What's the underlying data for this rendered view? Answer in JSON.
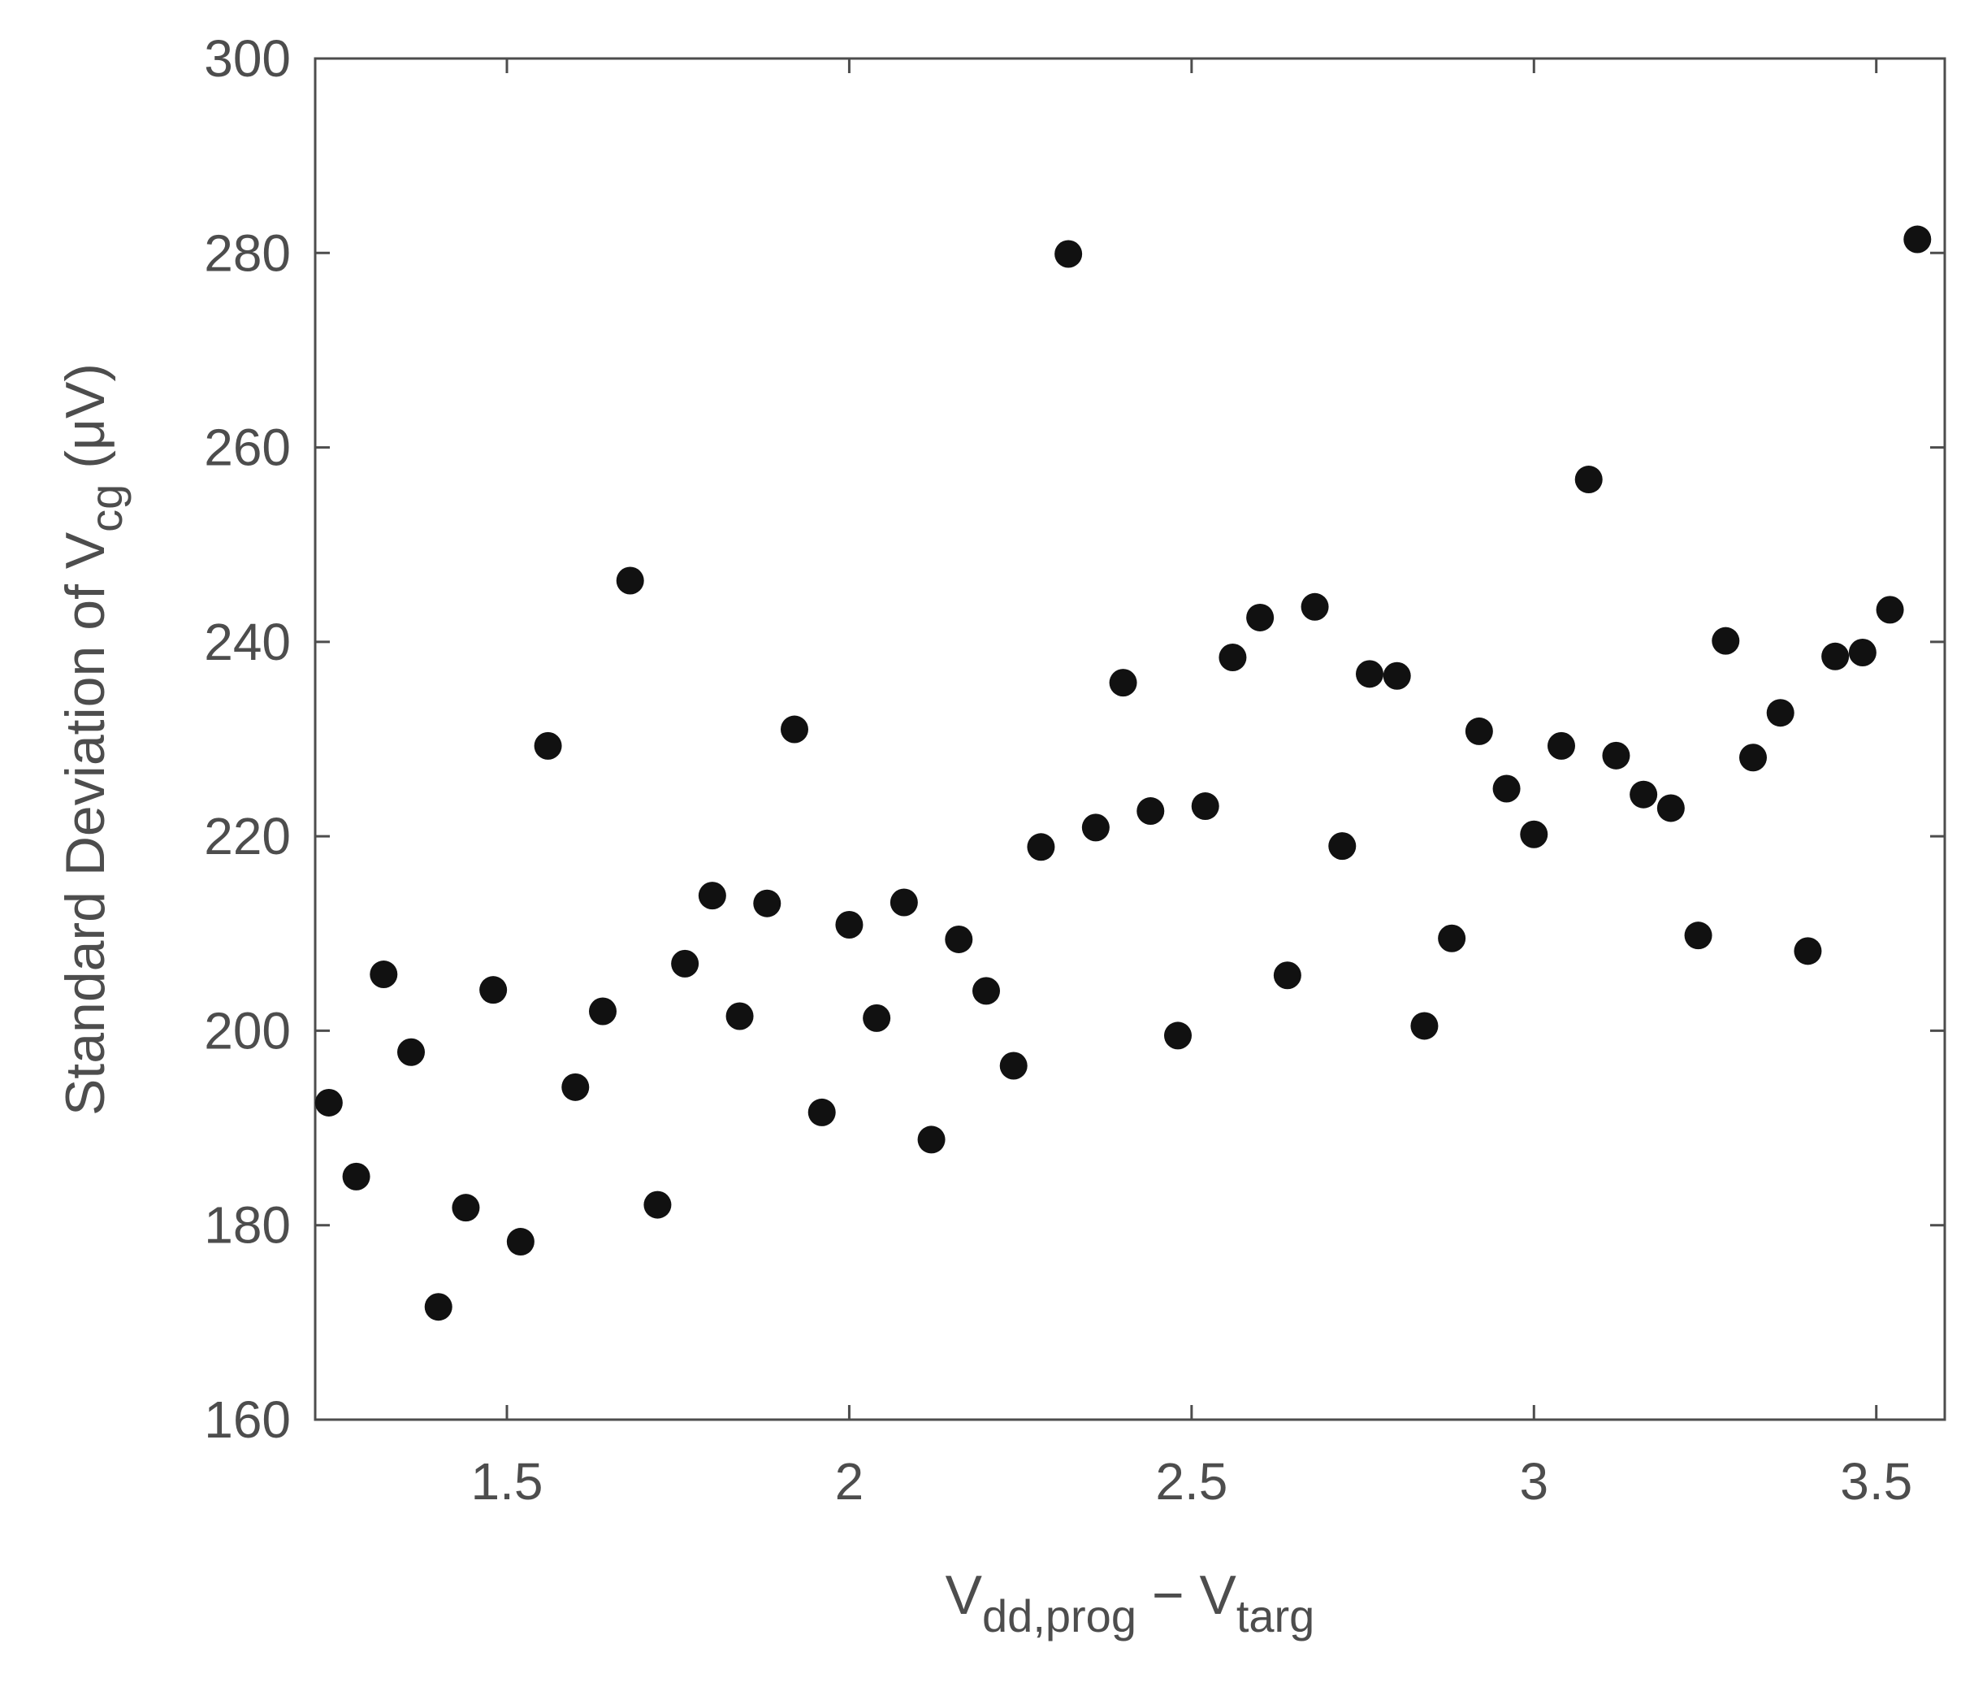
{
  "chart_data": {
    "type": "scatter",
    "title": "",
    "xlabel": {
      "main": "V",
      "sub1": "dd,prog",
      "minus": " − V",
      "sub2": "targ"
    },
    "ylabel": {
      "pre": "Standard Deviation of V",
      "sub": "cg",
      "post": " (μV)"
    },
    "xlim": [
      1.22,
      3.6
    ],
    "ylim": [
      160,
      300
    ],
    "xticks": [
      1.5,
      2,
      2.5,
      3,
      3.5
    ],
    "xtick_labels": [
      "1.5",
      "2",
      "2.5",
      "3",
      "3.5"
    ],
    "yticks": [
      160,
      180,
      200,
      220,
      240,
      260,
      280,
      300
    ],
    "ytick_labels": [
      "160",
      "180",
      "200",
      "220",
      "240",
      "260",
      "280",
      "300"
    ],
    "grid": false,
    "marker_color": "#111111",
    "points": [
      [
        1.24,
        192.6
      ],
      [
        1.28,
        185.0
      ],
      [
        1.32,
        205.8
      ],
      [
        1.36,
        197.8
      ],
      [
        1.4,
        171.6
      ],
      [
        1.44,
        181.8
      ],
      [
        1.48,
        204.2
      ],
      [
        1.52,
        178.3
      ],
      [
        1.56,
        229.3
      ],
      [
        1.6,
        194.2
      ],
      [
        1.64,
        202.0
      ],
      [
        1.68,
        246.3
      ],
      [
        1.72,
        182.1
      ],
      [
        1.76,
        206.9
      ],
      [
        1.8,
        213.9
      ],
      [
        1.84,
        201.5
      ],
      [
        1.88,
        213.1
      ],
      [
        1.92,
        231.0
      ],
      [
        1.96,
        191.6
      ],
      [
        2.0,
        210.9
      ],
      [
        2.04,
        201.3
      ],
      [
        2.08,
        213.2
      ],
      [
        2.12,
        188.8
      ],
      [
        2.16,
        209.4
      ],
      [
        2.2,
        204.1
      ],
      [
        2.24,
        196.4
      ],
      [
        2.28,
        218.9
      ],
      [
        2.32,
        279.9
      ],
      [
        2.36,
        220.9
      ],
      [
        2.4,
        235.8
      ],
      [
        2.44,
        222.6
      ],
      [
        2.48,
        199.5
      ],
      [
        2.52,
        223.1
      ],
      [
        2.56,
        238.4
      ],
      [
        2.6,
        242.5
      ],
      [
        2.64,
        205.7
      ],
      [
        2.68,
        243.6
      ],
      [
        2.72,
        219.0
      ],
      [
        2.76,
        236.7
      ],
      [
        2.8,
        236.5
      ],
      [
        2.84,
        200.5
      ],
      [
        2.88,
        209.5
      ],
      [
        2.92,
        230.8
      ],
      [
        2.96,
        224.9
      ],
      [
        3.0,
        220.2
      ],
      [
        3.04,
        229.3
      ],
      [
        3.08,
        256.7
      ],
      [
        3.12,
        228.3
      ],
      [
        3.16,
        224.3
      ],
      [
        3.2,
        222.9
      ],
      [
        3.24,
        209.8
      ],
      [
        3.28,
        240.1
      ],
      [
        3.32,
        228.1
      ],
      [
        3.36,
        232.7
      ],
      [
        3.4,
        208.2
      ],
      [
        3.44,
        238.5
      ],
      [
        3.48,
        238.9
      ],
      [
        3.52,
        243.3
      ],
      [
        3.56,
        281.4
      ]
    ]
  }
}
